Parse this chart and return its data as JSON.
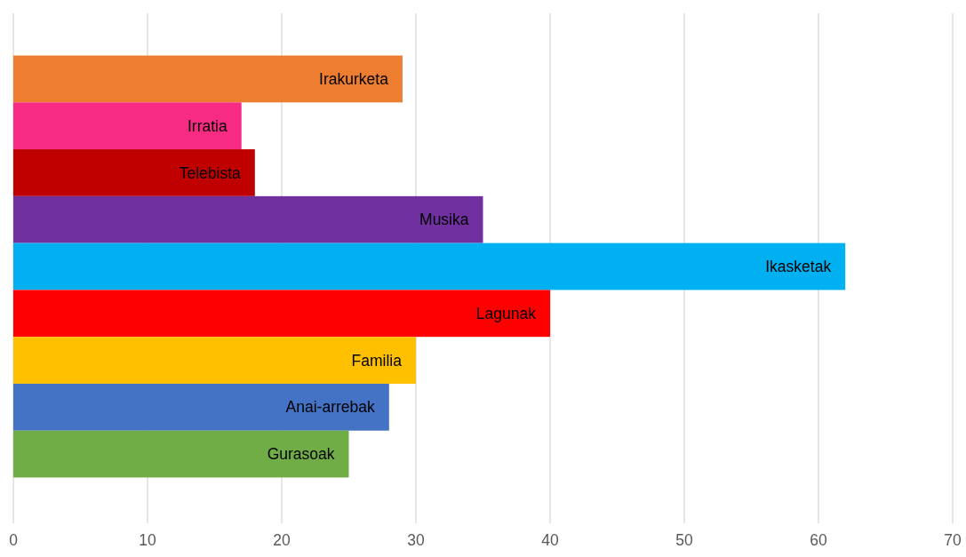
{
  "chart_data": {
    "type": "bar",
    "orientation": "horizontal",
    "categories": [
      "Irakurketa",
      "Irratia",
      "Telebista",
      "Musika",
      "Ikasketak",
      "Lagunak",
      "Familia",
      "Anai-arrebak",
      "Gurasoak"
    ],
    "values": [
      29,
      17,
      18,
      35,
      62,
      40,
      30,
      28,
      25
    ],
    "colors": [
      "#ed7d31",
      "#f72a84",
      "#c00000",
      "#7030a0",
      "#00b0f0",
      "#ff0000",
      "#ffc000",
      "#4472c4",
      "#70ad47"
    ],
    "xlim": [
      0,
      70
    ],
    "xticks": [
      0,
      10,
      20,
      30,
      40,
      50,
      60,
      70
    ],
    "grid": "x"
  }
}
